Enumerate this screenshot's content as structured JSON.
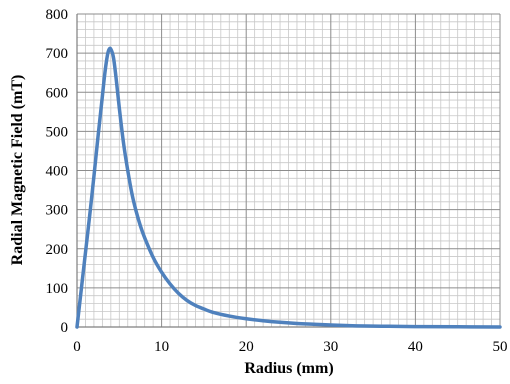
{
  "chart_data": {
    "type": "line",
    "title": "",
    "xlabel": "Radius (mm)",
    "ylabel": "Radial Magnetic Field (mT)",
    "xlim": [
      0,
      50
    ],
    "ylim": [
      0,
      800
    ],
    "x_ticks": [
      "0",
      "10",
      "20",
      "30",
      "40",
      "50"
    ],
    "y_ticks": [
      "0",
      "100",
      "200",
      "300",
      "400",
      "500",
      "600",
      "700",
      "800"
    ],
    "x_minor_step": 1,
    "y_minor_step": 20,
    "grid": true,
    "legend": "none",
    "colors": {
      "line": "#4f81bd",
      "major_grid": "#8c8c8c",
      "minor_grid": "#c8c8c8",
      "axis": "#7f7f7f"
    },
    "series": [
      {
        "x": [
          0,
          0.5,
          1,
          1.5,
          2,
          2.5,
          3,
          3.3,
          3.6,
          3.8,
          4,
          4.3,
          4.6,
          5,
          5.5,
          6,
          6.5,
          7,
          7.5,
          8,
          9,
          10,
          11,
          12,
          13,
          14,
          15,
          16,
          18,
          20,
          22,
          24,
          26,
          28,
          30,
          33,
          36,
          40,
          45,
          50
        ],
        "y": [
          0,
          95,
          190,
          285,
          385,
          490,
          590,
          650,
          695,
          710,
          710,
          690,
          640,
          560,
          470,
          400,
          340,
          295,
          258,
          228,
          178,
          140,
          110,
          86,
          68,
          55,
          46,
          38,
          28,
          21,
          16,
          12,
          9,
          7,
          5,
          3,
          2,
          1,
          0.5,
          0
        ]
      }
    ]
  }
}
